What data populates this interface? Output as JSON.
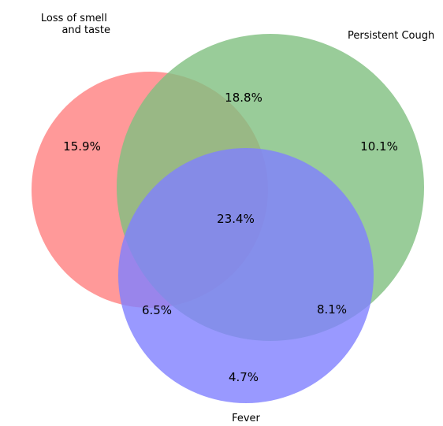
{
  "sets": [
    {
      "id": "smell",
      "name_lines": [
        "Loss of smell",
        "and taste"
      ],
      "color": "#ff7f7f",
      "opacity": 0.8
    },
    {
      "id": "cough",
      "name_lines": [
        "Persistent Cough"
      ],
      "color": "#7fbf7f",
      "opacity": 0.8
    },
    {
      "id": "fever",
      "name_lines": [
        "Fever"
      ],
      "color": "#8080ff",
      "opacity": 0.8
    }
  ],
  "regions": [
    {
      "id": "smell-only",
      "sets": [
        "smell"
      ],
      "label": "15.9%"
    },
    {
      "id": "cough-only",
      "sets": [
        "cough"
      ],
      "label": "10.1%"
    },
    {
      "id": "fever-only",
      "sets": [
        "fever"
      ],
      "label": "4.7%"
    },
    {
      "id": "smell-cough",
      "sets": [
        "smell",
        "cough"
      ],
      "label": "18.8%"
    },
    {
      "id": "smell-fever",
      "sets": [
        "smell",
        "fever"
      ],
      "label": "6.5%"
    },
    {
      "id": "cough-fever",
      "sets": [
        "cough",
        "fever"
      ],
      "label": "8.1%"
    },
    {
      "id": "smell-cough-fever",
      "sets": [
        "smell",
        "cough",
        "fever"
      ],
      "label": "23.4%"
    }
  ]
}
